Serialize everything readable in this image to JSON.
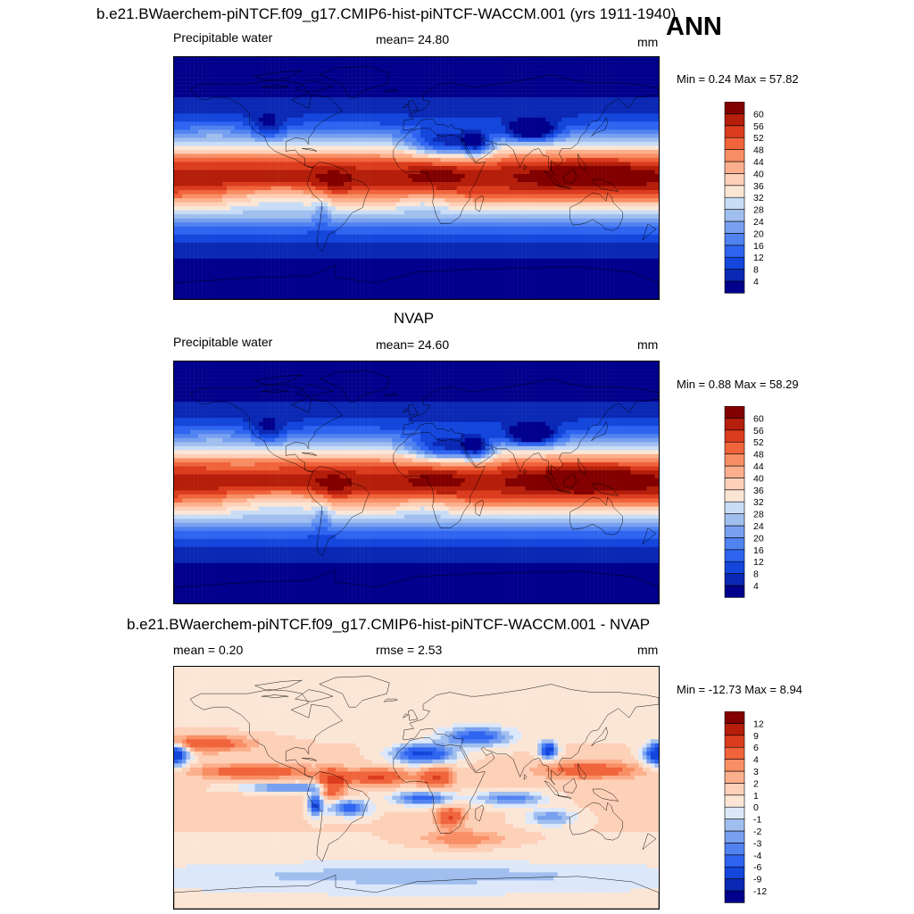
{
  "header": {
    "title": "b.e21.BWaerchem-piNTCF.f09_g17.CMIP6-hist-piNTCF-WACCM.001 (yrs 1911-1940)",
    "season": "ANN"
  },
  "panels": [
    {
      "id": "model",
      "subtitle": "",
      "variable": "Precipitable water",
      "stat_label": "mean=  24.80",
      "units": "mm",
      "minmax": "Min =   0.24 Max =  57.82"
    },
    {
      "id": "obs",
      "subtitle": "NVAP",
      "variable": "Precipitable water",
      "stat_label": "mean=  24.60",
      "units": "mm",
      "minmax": "Min =   0.88 Max =  58.29"
    },
    {
      "id": "diff",
      "subtitle": "b.e21.BWaerchem-piNTCF.f09_g17.CMIP6-hist-piNTCF-WACCM.001 - NVAP",
      "variable": "mean =   0.20",
      "stat_label": "rmse =   2.53",
      "units": "mm",
      "minmax": "Min = -12.73 Max =   8.94"
    }
  ],
  "chart_data": [
    {
      "type": "heatmap",
      "title": "b.e21.BWaerchem-piNTCF.f09_g17.CMIP6-hist-piNTCF-WACCM.001 (yrs 1911-1940)",
      "variable": "Precipitable water",
      "units": "mm",
      "mean": 24.8,
      "min": 0.24,
      "max": 57.82,
      "contour_levels": [
        4,
        8,
        12,
        16,
        20,
        24,
        28,
        32,
        36,
        40,
        44,
        48,
        52,
        56,
        60
      ],
      "colors": [
        "#00008c",
        "#0a28b4",
        "#1446dc",
        "#2e64f0",
        "#5082f0",
        "#78a0f0",
        "#a0beee",
        "#c8dcf6",
        "#fbe6d6",
        "#fdd0b8",
        "#fcaf8c",
        "#f88e64",
        "#f0643c",
        "#dc3c1e",
        "#b41e0a",
        "#820000"
      ]
    },
    {
      "type": "heatmap",
      "title": "NVAP",
      "variable": "Precipitable water",
      "units": "mm",
      "mean": 24.6,
      "min": 0.88,
      "max": 58.29,
      "contour_levels": [
        4,
        8,
        12,
        16,
        20,
        24,
        28,
        32,
        36,
        40,
        44,
        48,
        52,
        56,
        60
      ],
      "colors": [
        "#00008c",
        "#0a28b4",
        "#1446dc",
        "#2e64f0",
        "#5082f0",
        "#78a0f0",
        "#a0beee",
        "#c8dcf6",
        "#fbe6d6",
        "#fdd0b8",
        "#fcaf8c",
        "#f88e64",
        "#f0643c",
        "#dc3c1e",
        "#b41e0a",
        "#820000"
      ]
    },
    {
      "type": "heatmap",
      "title": "b.e21.BWaerchem-piNTCF.f09_g17.CMIP6-hist-piNTCF-WACCM.001 - NVAP",
      "units": "mm",
      "mean": 0.2,
      "rmse": 2.53,
      "min": -12.73,
      "max": 8.94,
      "contour_levels": [
        -12,
        -9,
        -6,
        -4,
        -3,
        -2,
        -1,
        0,
        1,
        2,
        3,
        4,
        6,
        9,
        12
      ],
      "colors": [
        "#00008c",
        "#0a28b4",
        "#1446dc",
        "#2e64f0",
        "#5082f0",
        "#78a0f0",
        "#a0beee",
        "#dce8fa",
        "#fbe6d6",
        "#fdd0b8",
        "#fcaf8c",
        "#f88e64",
        "#f0643c",
        "#dc3c1e",
        "#b41e0a",
        "#820000"
      ]
    }
  ]
}
